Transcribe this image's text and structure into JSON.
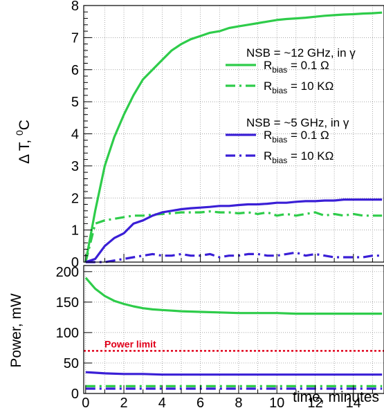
{
  "chart_data": [
    {
      "type": "line",
      "ylabel_main": "Δ T, ",
      "ylabel_sup": "0",
      "ylabel_tail": "C",
      "ylim": [
        0,
        8
      ],
      "xlim": [
        -0.1,
        15.6
      ],
      "grid": true,
      "yticks": [
        0,
        1,
        2,
        3,
        4,
        5,
        6,
        7,
        8
      ],
      "legend": {
        "group1_title": "NSB = ~12 GHz, in γ",
        "group2_title": "NSB = ~5 GHz, in γ",
        "entries": [
          {
            "series": 0,
            "prefix": "R",
            "sub": "bias",
            "suffix": " = 0.1 Ω"
          },
          {
            "series": 1,
            "prefix": "R",
            "sub": "bias",
            "suffix": " = 10 KΩ"
          },
          {
            "series": 2,
            "prefix": "R",
            "sub": "bias",
            "suffix": " = 0.1 Ω"
          },
          {
            "series": 3,
            "prefix": "R",
            "sub": "bias",
            "suffix": " = 10 KΩ"
          }
        ]
      },
      "series": [
        {
          "color": "#2ecc4a",
          "dash": "solid",
          "x": [
            0,
            0.5,
            1,
            1.5,
            2,
            2.5,
            3,
            3.5,
            4,
            4.5,
            5,
            5.5,
            6,
            6.5,
            7,
            7.5,
            8,
            8.5,
            9,
            9.5,
            10,
            10.5,
            11,
            11.5,
            12,
            12.5,
            13,
            13.5,
            14,
            14.5,
            15,
            15.5
          ],
          "y": [
            0,
            1.6,
            3,
            3.9,
            4.6,
            5.2,
            5.7,
            6,
            6.3,
            6.6,
            6.8,
            6.95,
            7.05,
            7.15,
            7.2,
            7.3,
            7.35,
            7.4,
            7.45,
            7.5,
            7.55,
            7.58,
            7.6,
            7.62,
            7.65,
            7.68,
            7.7,
            7.72,
            7.73,
            7.75,
            7.76,
            7.78
          ]
        },
        {
          "color": "#2ecc4a",
          "dash": "dashdot",
          "x": [
            0,
            0.5,
            1,
            1.5,
            2,
            2.5,
            3,
            3.5,
            4,
            4.5,
            5,
            5.5,
            6,
            6.5,
            7,
            7.5,
            8,
            8.5,
            9,
            9.5,
            10,
            10.5,
            11,
            11.5,
            12,
            12.5,
            13,
            13.5,
            14,
            14.5,
            15,
            15.5
          ],
          "y": [
            0,
            1.2,
            1.3,
            1.35,
            1.4,
            1.45,
            1.45,
            1.48,
            1.5,
            1.52,
            1.55,
            1.55,
            1.55,
            1.58,
            1.55,
            1.55,
            1.52,
            1.55,
            1.5,
            1.55,
            1.45,
            1.5,
            1.45,
            1.5,
            1.55,
            1.45,
            1.5,
            1.45,
            1.5,
            1.45,
            1.45,
            1.45
          ]
        },
        {
          "color": "#3a1fd6",
          "dash": "solid",
          "x": [
            0,
            0.5,
            1,
            1.5,
            2,
            2.5,
            3,
            3.5,
            4,
            4.5,
            5,
            5.5,
            6,
            6.5,
            7,
            7.5,
            8,
            8.5,
            9,
            9.5,
            10,
            10.5,
            11,
            11.5,
            12,
            12.5,
            13,
            13.5,
            14,
            14.5,
            15,
            15.5
          ],
          "y": [
            0,
            0.1,
            0.5,
            0.75,
            0.9,
            1.2,
            1.3,
            1.45,
            1.55,
            1.6,
            1.65,
            1.68,
            1.7,
            1.72,
            1.75,
            1.75,
            1.78,
            1.8,
            1.8,
            1.82,
            1.85,
            1.85,
            1.88,
            1.9,
            1.9,
            1.92,
            1.92,
            1.95,
            1.95,
            1.95,
            1.95,
            1.95
          ]
        },
        {
          "color": "#3a1fd6",
          "dash": "dashdot",
          "x": [
            0,
            0.5,
            1,
            1.5,
            2,
            2.5,
            3,
            3.5,
            4,
            4.5,
            5,
            5.5,
            6,
            6.5,
            7,
            7.5,
            8,
            8.5,
            9,
            9.5,
            10,
            10.5,
            11,
            11.5,
            12,
            12.5,
            13,
            13.5,
            14,
            14.5,
            15,
            15.5
          ],
          "y": [
            0,
            0,
            0,
            0.05,
            0.1,
            0.15,
            0.2,
            0.25,
            0.2,
            0.2,
            0.25,
            0.2,
            0.2,
            0.25,
            0.15,
            0.2,
            0.2,
            0.25,
            0.25,
            0.2,
            0.2,
            0.25,
            0.3,
            0.2,
            0.25,
            0.2,
            0.15,
            0.15,
            0.15,
            0.15,
            0.2,
            0.2
          ]
        }
      ]
    },
    {
      "type": "line",
      "ylabel": "Power, mW",
      "xlabel": "time, minutes",
      "ylim": [
        0,
        210
      ],
      "xlim": [
        -0.1,
        15.6
      ],
      "grid": true,
      "yticks": [
        0,
        50,
        100,
        150,
        200
      ],
      "xticks": [
        0,
        2,
        4,
        6,
        8,
        10,
        12,
        14
      ],
      "annotation": "Power limit",
      "limit_value": 70,
      "limit_color": "#e0001a",
      "series": [
        {
          "color": "#2ecc4a",
          "dash": "solid",
          "x": [
            0,
            0.5,
            1,
            1.5,
            2,
            2.5,
            3,
            3.5,
            4,
            4.5,
            5,
            6,
            7,
            8,
            9,
            10,
            11,
            12,
            13,
            14,
            15,
            15.5
          ],
          "y": [
            190,
            172,
            160,
            152,
            147,
            143,
            140,
            138,
            137,
            136,
            135,
            134,
            133,
            132,
            132,
            132,
            131,
            131,
            131,
            131,
            131,
            131
          ]
        },
        {
          "color": "#2ecc4a",
          "dash": "dashdot",
          "x": [
            0,
            15.5
          ],
          "y": [
            12,
            12
          ]
        },
        {
          "color": "#3a1fd6",
          "dash": "solid",
          "x": [
            0,
            0.5,
            1,
            2,
            3,
            4,
            5,
            6,
            7,
            8,
            9,
            10,
            11,
            12,
            13,
            14,
            15,
            15.5
          ],
          "y": [
            35,
            34,
            33,
            32,
            32,
            31,
            31,
            31,
            31,
            31,
            31,
            31,
            31,
            31,
            31,
            31,
            31,
            31
          ]
        },
        {
          "color": "#3a1fd6",
          "dash": "dashdot",
          "x": [
            0,
            15.5
          ],
          "y": [
            8,
            8
          ]
        }
      ]
    }
  ]
}
